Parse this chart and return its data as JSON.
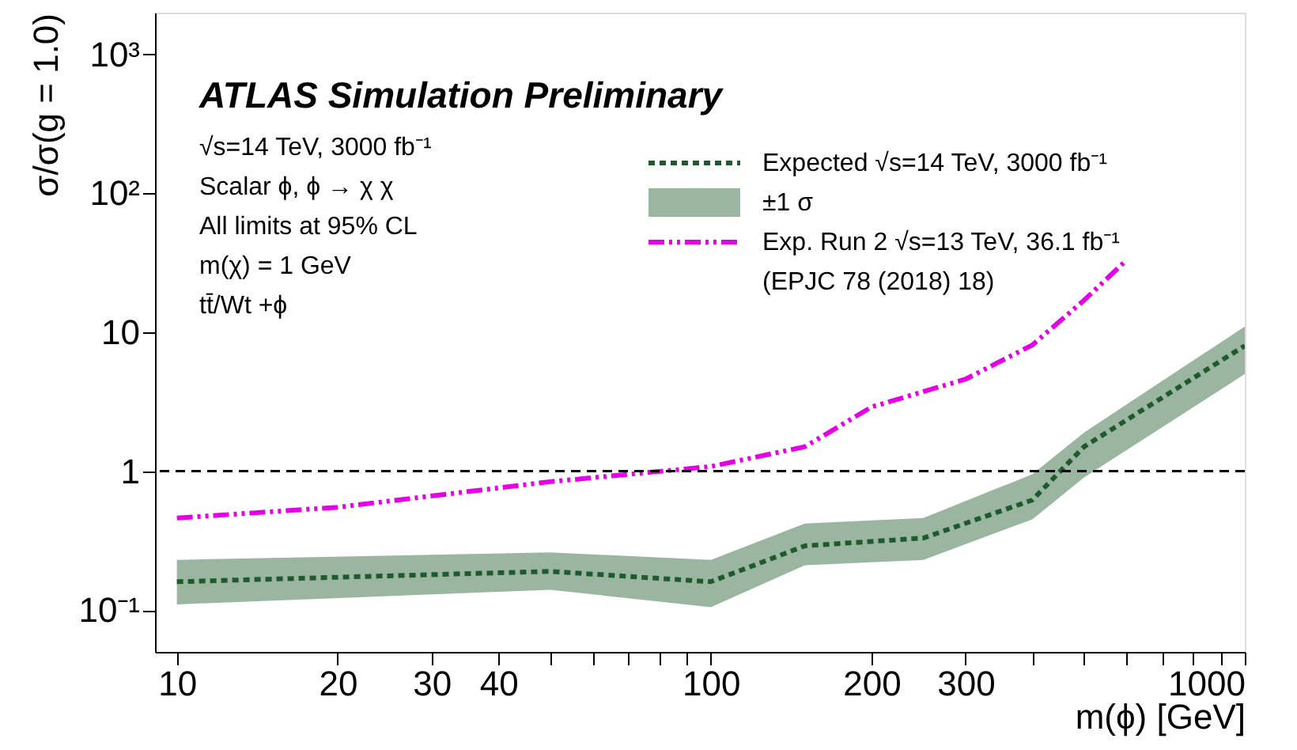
{
  "chart_data": {
    "type": "line",
    "title": "ATLAS Simulation Preliminary",
    "xlabel": "m(ϕ) [GeV]",
    "ylabel": "σ/σ(g = 1.0)",
    "annotations": [
      "√s=14 TeV, 3000 fb⁻¹",
      "Scalar ϕ, ϕ → χ χ",
      "All limits at 95% CL",
      "m(χ) = 1 GeV",
      "tt̄/Wt +ϕ",
      "±1 σ"
    ],
    "series": [
      {
        "name": "Expected √s=14 TeV, 3000 fb⁻¹",
        "type": "line",
        "line_style": "dotted",
        "color": "#1e5a2c",
        "x": [
          10,
          50,
          100,
          150,
          250,
          400,
          500,
          1000
        ],
        "values": [
          0.16,
          0.19,
          0.16,
          0.29,
          0.33,
          0.62,
          1.5,
          8
        ],
        "lower": [
          0.11,
          0.14,
          0.105,
          0.21,
          0.23,
          0.45,
          0.9,
          5
        ],
        "upper": [
          0.23,
          0.26,
          0.23,
          0.42,
          0.46,
          0.95,
          1.9,
          11
        ]
      },
      {
        "name": "Exp. Run 2 √s=13 TeV, 36.1 fb⁻¹\n(EPJC 78 (2018) 18)",
        "type": "line",
        "line_style": "dashed",
        "color": "#e600e6",
        "x": [
          10,
          20,
          50,
          100,
          150,
          200,
          300,
          400,
          500,
          600
        ],
        "values": [
          0.46,
          0.55,
          0.84,
          1.08,
          1.5,
          2.9,
          4.6,
          8.1,
          17,
          33
        ]
      }
    ],
    "ref_lines": [
      {
        "axis": "y",
        "value": 1,
        "color": "#000000",
        "line_style": "dashed"
      }
    ],
    "log": "xy",
    "grid": false,
    "legend": "top right",
    "xlim": [
      9.1,
      1000
    ],
    "ylim": [
      0.05,
      2000
    ],
    "xticks": [
      10,
      20,
      30,
      40,
      {
        "value": 50,
        "label": null
      },
      {
        "value": 60,
        "label": null
      },
      {
        "value": 70,
        "label": null
      },
      {
        "value": 80,
        "label": null
      },
      {
        "value": 90,
        "label": null
      },
      100,
      200,
      300,
      {
        "value": 400,
        "label": null
      },
      {
        "value": 500,
        "label": null
      },
      {
        "value": 600,
        "label": null
      },
      {
        "value": 700,
        "label": null
      },
      {
        "value": 800,
        "label": null
      },
      {
        "value": 900,
        "label": null
      },
      1000
    ],
    "yticks": [
      {
        "value": 0.1,
        "label": "10⁻¹"
      },
      1,
      10,
      {
        "value": 100,
        "label": "10²"
      },
      {
        "value": 1000,
        "label": "10³"
      }
    ]
  }
}
